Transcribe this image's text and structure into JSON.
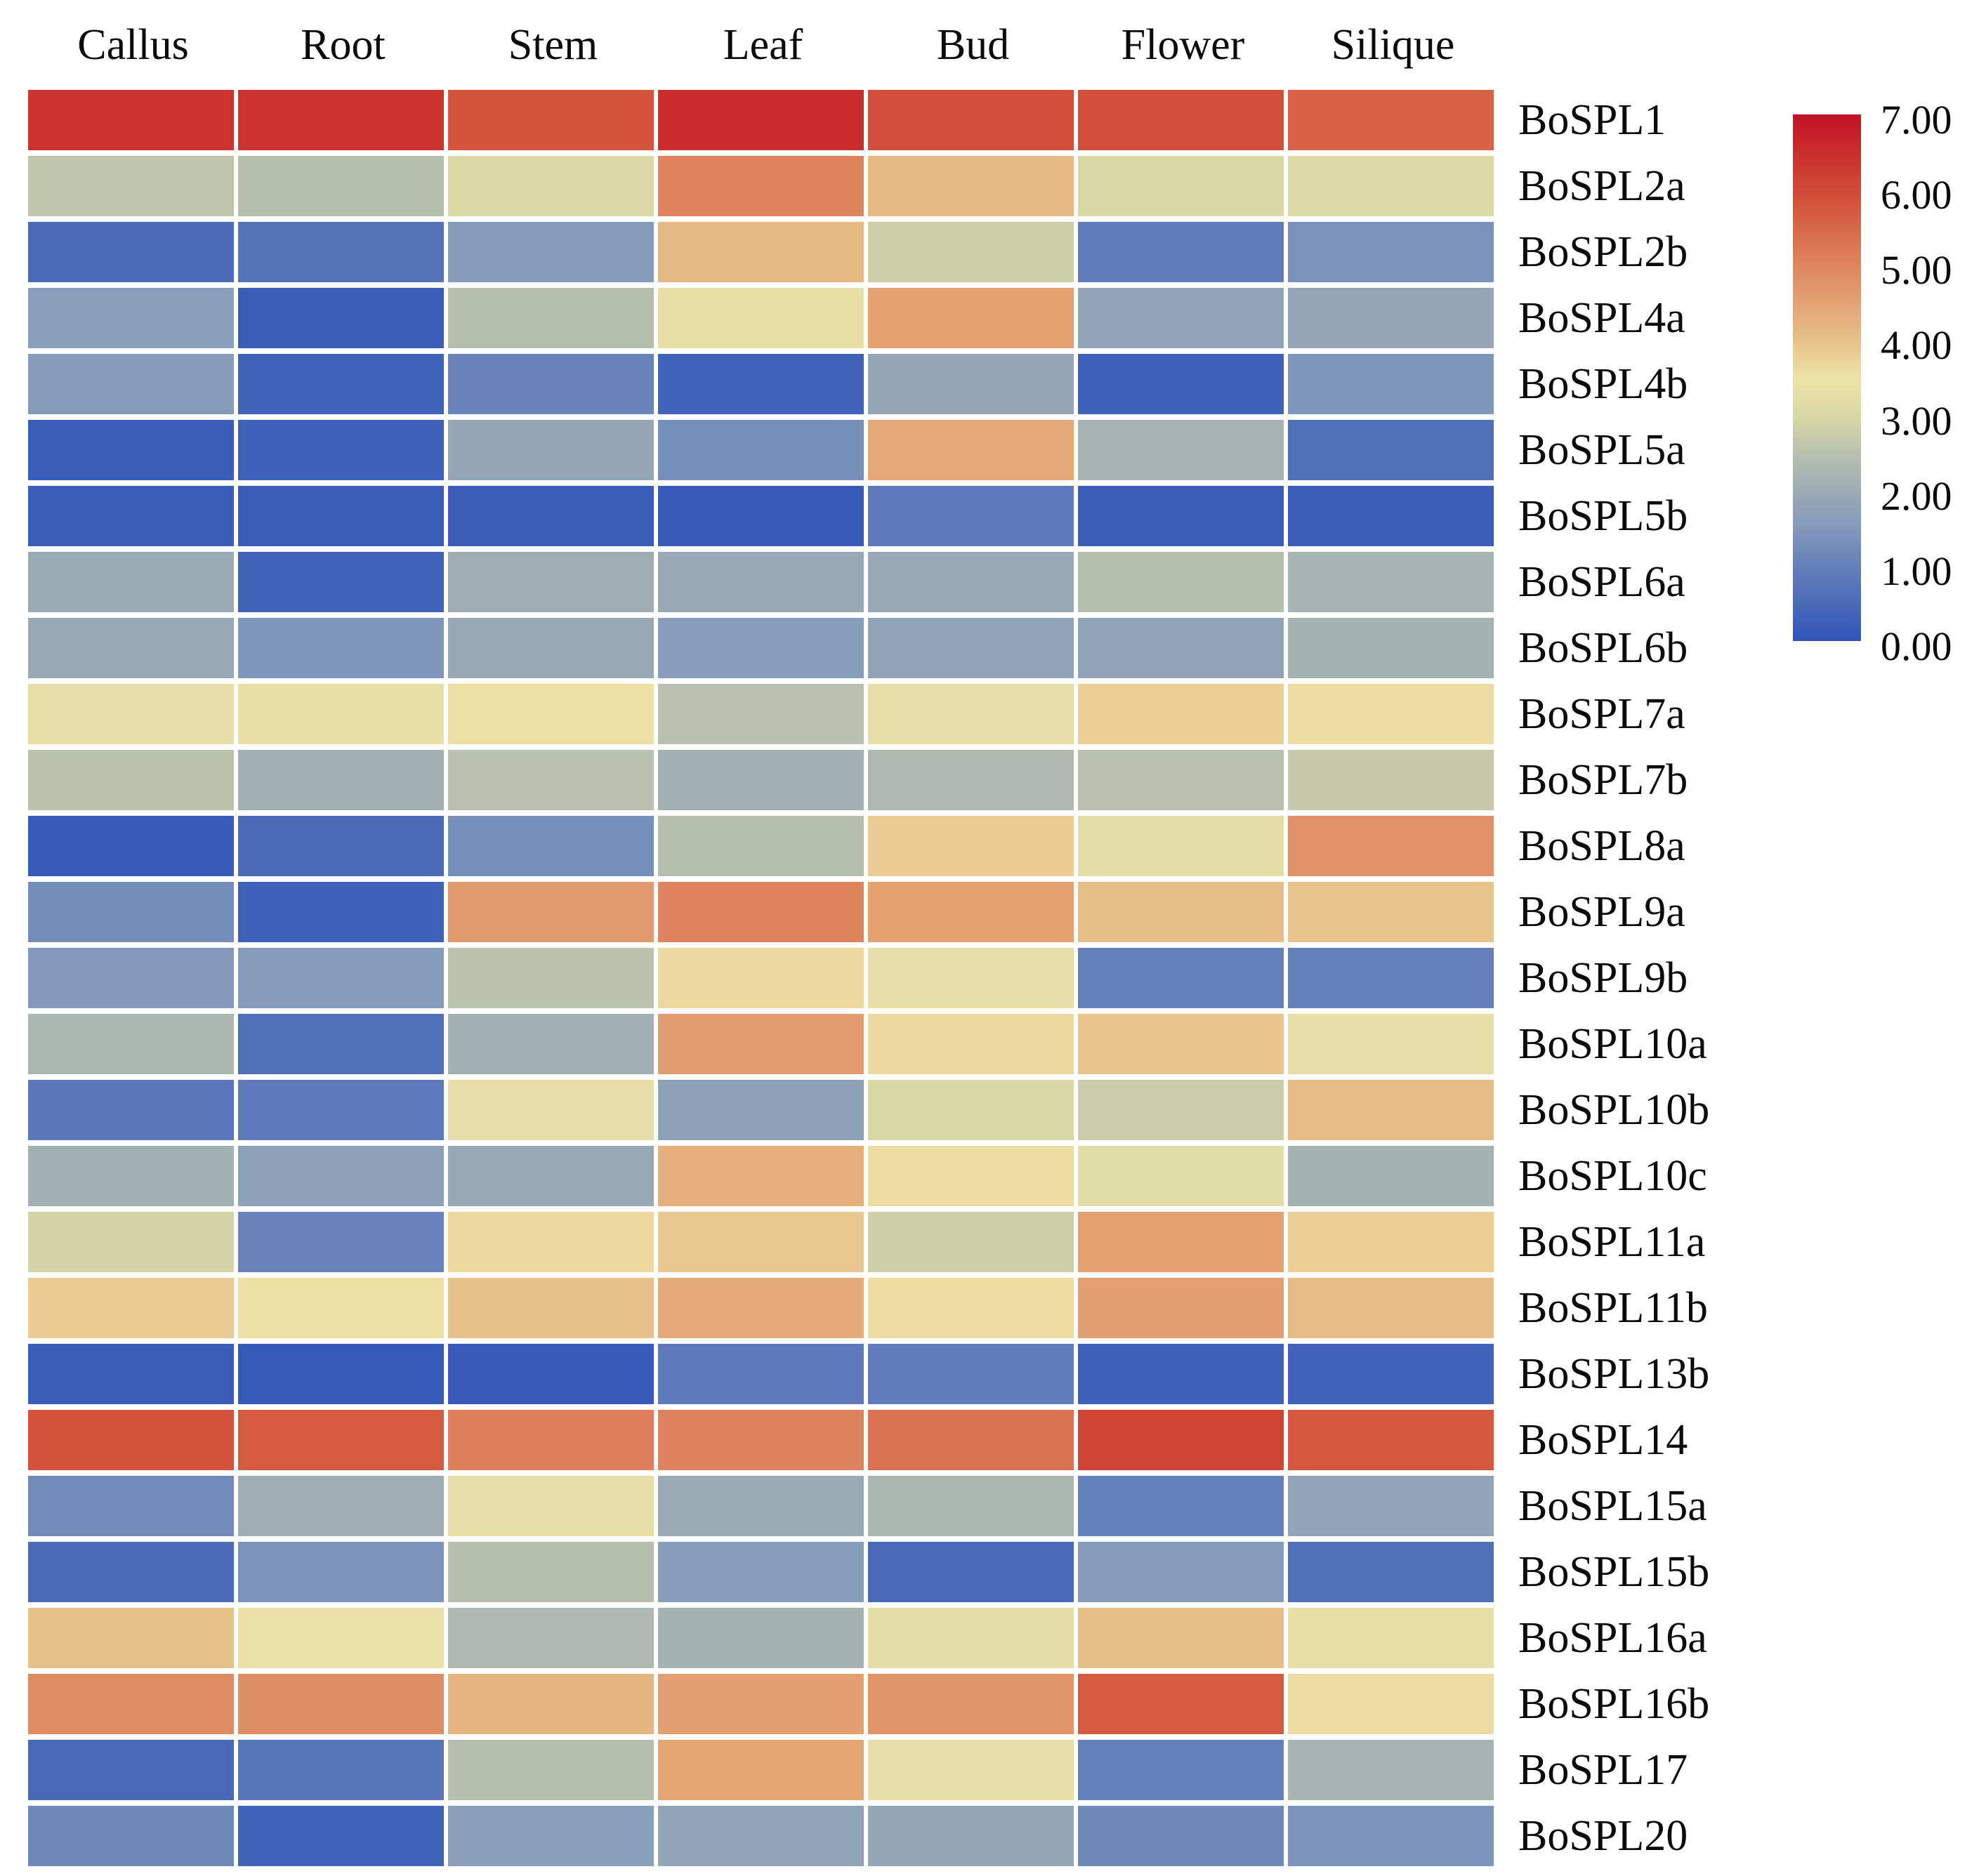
{
  "figure": {
    "background": "#ffffff",
    "text_color": "#0b0b0b"
  },
  "chart_data": {
    "type": "heatmap",
    "title": "",
    "xlabel": "",
    "ylabel": "",
    "columns": [
      "Callus",
      "Root",
      "Stem",
      "Leaf",
      "Bud",
      "Flower",
      "Silique"
    ],
    "rows": [
      "BoSPL1",
      "BoSPL2a",
      "BoSPL2b",
      "BoSPL4a",
      "BoSPL4b",
      "BoSPL5a",
      "BoSPL5b",
      "BoSPL6a",
      "BoSPL6b",
      "BoSPL7a",
      "BoSPL7b",
      "BoSPL8a",
      "BoSPL9a",
      "BoSPL9b",
      "BoSPL10a",
      "BoSPL10b",
      "BoSPL10c",
      "BoSPL11a",
      "BoSPL11b",
      "BoSPL13b",
      "BoSPL14",
      "BoSPL15a",
      "BoSPL15b",
      "BoSPL16a",
      "BoSPL16b",
      "BoSPL17",
      "BoSPL20"
    ],
    "values": [
      [
        6.4,
        6.4,
        5.8,
        6.5,
        5.9,
        5.9,
        5.6
      ],
      [
        2.6,
        2.45,
        3.05,
        5.0,
        4.15,
        3.0,
        3.1
      ],
      [
        0.5,
        0.7,
        1.55,
        4.15,
        2.8,
        0.9,
        1.35
      ],
      [
        1.65,
        0.2,
        2.45,
        3.35,
        4.5,
        1.8,
        1.85
      ],
      [
        1.55,
        0.3,
        1.05,
        0.3,
        1.85,
        0.25,
        1.45
      ],
      [
        0.2,
        0.25,
        1.85,
        1.3,
        4.4,
        2.2,
        0.6
      ],
      [
        0.2,
        0.2,
        0.2,
        0.15,
        0.85,
        0.2,
        0.2
      ],
      [
        1.95,
        0.3,
        2.05,
        1.9,
        1.9,
        2.45,
        2.2
      ],
      [
        1.9,
        1.45,
        1.9,
        1.6,
        1.75,
        1.75,
        2.15
      ],
      [
        3.3,
        3.35,
        3.55,
        2.5,
        3.3,
        3.8,
        3.6
      ],
      [
        2.55,
        2.1,
        2.5,
        2.1,
        2.3,
        2.5,
        2.7
      ],
      [
        0.15,
        0.5,
        1.3,
        2.45,
        3.85,
        3.25,
        4.8
      ],
      [
        1.25,
        0.25,
        4.65,
        5.0,
        4.5,
        4.05,
        3.95
      ],
      [
        1.5,
        1.55,
        2.55,
        3.65,
        3.3,
        1.0,
        1.0
      ],
      [
        2.25,
        0.6,
        2.1,
        4.6,
        3.65,
        3.95,
        3.3
      ],
      [
        0.8,
        0.85,
        3.3,
        1.7,
        3.0,
        2.75,
        4.1
      ],
      [
        2.1,
        1.7,
        1.9,
        4.3,
        3.6,
        3.2,
        2.15
      ],
      [
        2.9,
        1.05,
        3.65,
        3.9,
        2.8,
        4.5,
        3.8
      ],
      [
        3.85,
        3.55,
        4.0,
        4.35,
        3.6,
        4.55,
        4.1
      ],
      [
        0.2,
        0.1,
        0.15,
        0.85,
        0.9,
        0.25,
        0.3
      ],
      [
        5.85,
        5.7,
        5.1,
        5.05,
        5.3,
        6.1,
        5.75
      ],
      [
        1.2,
        2.05,
        3.3,
        1.95,
        2.25,
        1.0,
        1.8
      ],
      [
        0.5,
        1.4,
        2.45,
        1.6,
        0.45,
        1.55,
        0.6
      ],
      [
        4.0,
        3.4,
        2.3,
        2.15,
        3.25,
        4.05,
        3.35
      ],
      [
        4.9,
        4.85,
        4.2,
        4.55,
        4.75,
        5.7,
        3.6
      ],
      [
        0.45,
        0.75,
        2.45,
        4.45,
        3.3,
        1.0,
        2.2
      ],
      [
        1.15,
        0.35,
        1.65,
        1.8,
        1.85,
        1.15,
        1.4
      ]
    ],
    "scale": {
      "min": 0,
      "max": 7,
      "tick_labels": [
        "7.00",
        "6.00",
        "5.00",
        "4.00",
        "3.00",
        "2.00",
        "1.00",
        "0.00"
      ],
      "legend_position": "top-right"
    },
    "colormap_stops": [
      [
        0.0,
        "#2f55b7"
      ],
      [
        1.0,
        "#6680ba"
      ],
      [
        1.5,
        "#8299bb"
      ],
      [
        2.0,
        "#9dacb4"
      ],
      [
        2.5,
        "#b9c0ad"
      ],
      [
        3.0,
        "#d9d9a5"
      ],
      [
        3.5,
        "#eee2a7"
      ],
      [
        4.0,
        "#e7c18a"
      ],
      [
        4.5,
        "#e4a273"
      ],
      [
        5.0,
        "#de8560"
      ],
      [
        5.5,
        "#d7674a"
      ],
      [
        6.0,
        "#d04936"
      ],
      [
        6.5,
        "#c92e2c"
      ],
      [
        7.0,
        "#c11126"
      ]
    ],
    "grid_gap_color": "#ffffff",
    "grid": "off"
  }
}
